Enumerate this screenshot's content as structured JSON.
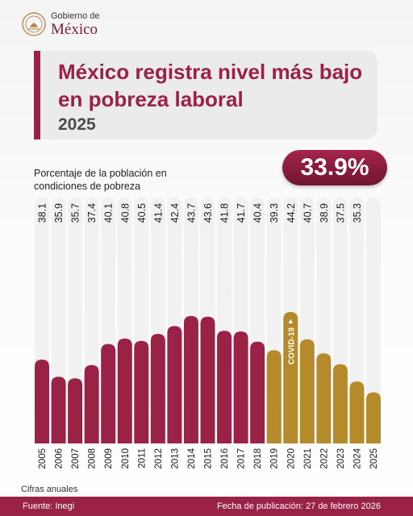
{
  "header": {
    "logo_small": "Gobierno de",
    "logo_big": "México",
    "logo_icon": "national-seal-icon"
  },
  "title": {
    "line1": "México registra nivel más bajo",
    "line2": "en pobreza laboral",
    "year": "2025"
  },
  "highlight": "33.9%",
  "colors": {
    "maroon": "#9b2247",
    "gold": "#b58a2a",
    "track": "#f1f1f1"
  },
  "chart_data": {
    "type": "bar",
    "title": "Porcentaje de la población en condiciones de pobreza",
    "ylabel_lines": [
      "Porcentaje de la población en",
      "condiciones de pobreza"
    ],
    "categories": [
      "2005",
      "2006",
      "2007",
      "2008",
      "2009",
      "2010",
      "2011",
      "2012",
      "2013",
      "2014",
      "2015",
      "2016",
      "2017",
      "2018",
      "2019",
      "2020",
      "2021",
      "2022",
      "2023",
      "2024",
      "2025"
    ],
    "values": [
      38.1,
      35.9,
      35.7,
      37.4,
      40.1,
      40.8,
      40.5,
      41.4,
      42.4,
      43.7,
      43.6,
      41.8,
      41.7,
      40.4,
      39.3,
      44.2,
      40.7,
      38.9,
      37.5,
      35.3,
      33.9
    ],
    "value_labels": [
      "38.1",
      "35.9",
      "35.7",
      "37.4",
      "40.1",
      "40.8",
      "40.5",
      "41.4",
      "42.4",
      "43.7",
      "43.6",
      "41.8",
      "41.7",
      "40.4",
      "39.3",
      "44.2",
      "40.7",
      "38.9",
      "37.5",
      "35.3",
      ""
    ],
    "series_colors": {
      "2005-2018": "#9b2247",
      "2019-2025": "#b58a2a"
    },
    "annotation": {
      "category": "2020",
      "text": "COVID-19"
    },
    "ylim": [
      32,
      44.2
    ],
    "grid": false
  },
  "footer": {
    "note": "Cifras anuales",
    "source": "Fuente: Inegi",
    "date": "Fecha de publicación: 27 de febrero 2026"
  }
}
